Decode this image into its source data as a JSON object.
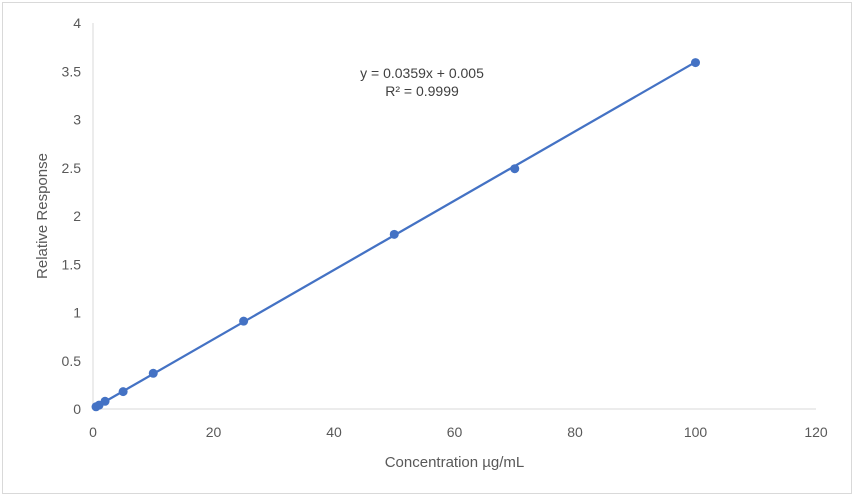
{
  "chart_data": {
    "type": "scatter",
    "title": "",
    "xlabel": "Concentration µg/mL",
    "ylabel": "Relative Response",
    "xlim": [
      0,
      120
    ],
    "ylim": [
      0,
      4
    ],
    "xticks": [
      "0",
      "20",
      "40",
      "60",
      "80",
      "100",
      "120"
    ],
    "yticks": [
      "0",
      "0.5",
      "1",
      "1.5",
      "2",
      "2.5",
      "3",
      "3.5",
      "4"
    ],
    "grid": false,
    "legend": "none",
    "series": [
      {
        "x": [
          0.5,
          1,
          2,
          5,
          10,
          25,
          50,
          70,
          100
        ],
        "y": [
          0.023,
          0.04,
          0.08,
          0.18,
          0.37,
          0.91,
          1.81,
          2.49,
          3.59
        ],
        "color": "#4472c4"
      }
    ],
    "trendline": {
      "slope": 0.0359,
      "intercept": 0.005,
      "x_range": [
        0.5,
        100
      ],
      "color": "#4472c4",
      "equation": "y = 0.0359x + 0.005",
      "r_squared": "R² = 0.9999"
    }
  }
}
